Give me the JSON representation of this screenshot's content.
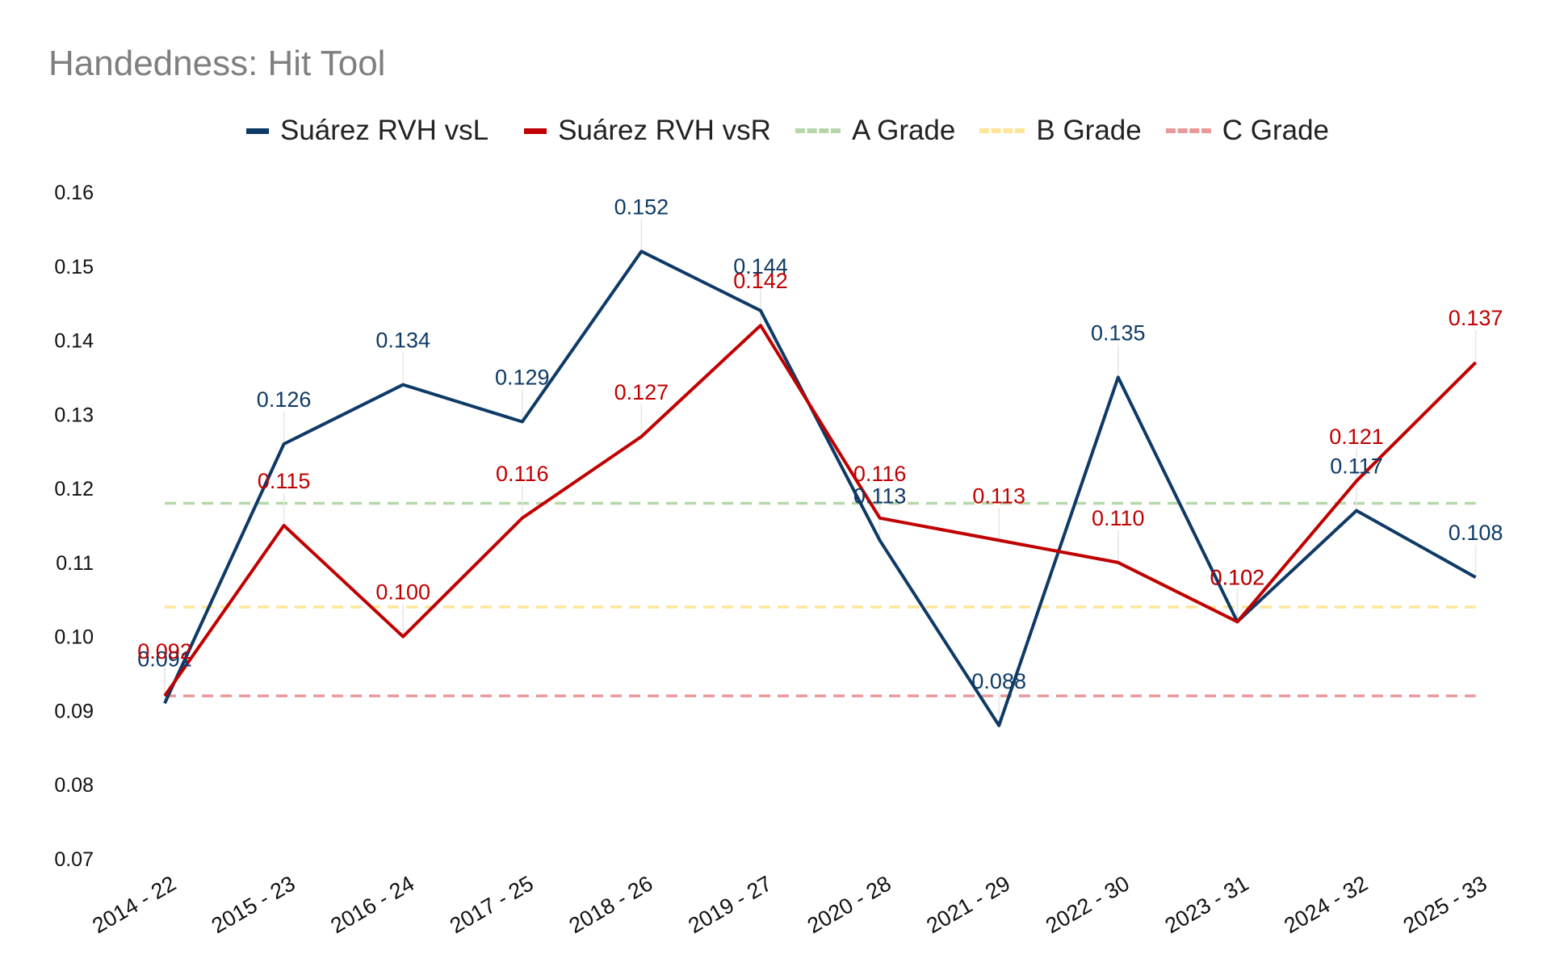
{
  "chart_data": {
    "type": "line",
    "title": "Handedness: Hit Tool",
    "xlabel": "",
    "ylabel": "",
    "ylim": [
      0.07,
      0.16
    ],
    "yticks": [
      "0.16",
      "0.15",
      "0.14",
      "0.13",
      "0.12",
      "0.11",
      "0.10",
      "0.09",
      "0.08",
      "0.07"
    ],
    "grid": false,
    "legend_position": "top-center",
    "categories": [
      "2014 - 22",
      "2015 - 23",
      "2016 - 24",
      "2017 - 25",
      "2018 - 26",
      "2019 - 27",
      "2020 - 28",
      "2021 - 29",
      "2022 - 30",
      "2023 - 31",
      "2024 - 32",
      "2025 - 33"
    ],
    "series": [
      {
        "name": "Suárez RVH vsL",
        "color": "#0e3a66",
        "style": "solid",
        "values": [
          0.091,
          0.126,
          0.134,
          0.129,
          0.152,
          0.144,
          0.113,
          0.088,
          0.135,
          0.102,
          0.117,
          0.108
        ],
        "labels": [
          "0.091",
          "0.126",
          "0.134",
          "0.129",
          "0.152",
          "0.144",
          "0.113",
          "0.088",
          "0.135",
          "0.102",
          "0.117",
          "0.108"
        ]
      },
      {
        "name": "Suárez RVH vsR",
        "color": "#c00000",
        "style": "solid",
        "values": [
          0.092,
          0.115,
          0.1,
          0.116,
          0.127,
          0.142,
          0.116,
          0.113,
          0.11,
          0.102,
          0.121,
          0.137
        ],
        "labels": [
          "0.092",
          "0.115",
          "0.100",
          "0.116",
          "0.127",
          "0.142",
          "0.116",
          "0.113",
          "0.110",
          "0.102",
          "0.121",
          "0.137"
        ]
      }
    ],
    "reference_lines": [
      {
        "name": "A Grade",
        "value": 0.118,
        "color": "#b6d7a8",
        "style": "dashed"
      },
      {
        "name": "B Grade",
        "value": 0.104,
        "color": "#ffe599",
        "style": "dashed"
      },
      {
        "name": "C Grade",
        "value": 0.092,
        "color": "#ea9999",
        "style": "dashed"
      }
    ]
  }
}
